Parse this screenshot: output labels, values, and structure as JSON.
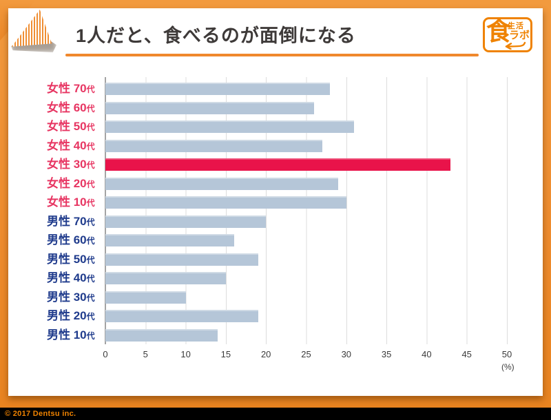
{
  "header": {
    "title": "1人だと、食べるのが面倒になる"
  },
  "logo": {
    "shoku": "食",
    "seikatsu": "生活",
    "labo": "ラボ",
    "name": "食生活ラボ",
    "color": "#ef8200"
  },
  "footer": {
    "copyright": "© 2017 Dentsu inc."
  },
  "chart_data": {
    "type": "bar",
    "orientation": "horizontal",
    "title": "1人だと、食べるのが面倒になる",
    "xlabel": "",
    "ylabel": "",
    "unit_label": "(%)",
    "xlim": [
      0,
      50
    ],
    "xticks": [
      0,
      5,
      10,
      15,
      20,
      25,
      30,
      35,
      40,
      45,
      50
    ],
    "grid": true,
    "legend": "none",
    "categories": [
      "女性 70代",
      "女性 60代",
      "女性 50代",
      "女性 40代",
      "女性 30代",
      "女性 20代",
      "女性 10代",
      "男性 70代",
      "男性 60代",
      "男性 50代",
      "男性 40代",
      "男性 30代",
      "男性 20代",
      "男性 10代"
    ],
    "values": [
      28,
      26,
      31,
      27,
      43,
      29,
      30,
      20,
      16,
      19,
      15,
      10,
      19,
      14
    ],
    "highlight_index": 4,
    "rows": [
      {
        "group": "female",
        "label": "女性 70",
        "suffix": "代",
        "value": 28,
        "highlight": false
      },
      {
        "group": "female",
        "label": "女性 60",
        "suffix": "代",
        "value": 26,
        "highlight": false
      },
      {
        "group": "female",
        "label": "女性 50",
        "suffix": "代",
        "value": 31,
        "highlight": false
      },
      {
        "group": "female",
        "label": "女性 40",
        "suffix": "代",
        "value": 27,
        "highlight": false
      },
      {
        "group": "female",
        "label": "女性 30",
        "suffix": "代",
        "value": 43,
        "highlight": true
      },
      {
        "group": "female",
        "label": "女性 20",
        "suffix": "代",
        "value": 29,
        "highlight": false
      },
      {
        "group": "female",
        "label": "女性 10",
        "suffix": "代",
        "value": 30,
        "highlight": false
      },
      {
        "group": "male",
        "label": "男性 70",
        "suffix": "代",
        "value": 20,
        "highlight": false
      },
      {
        "group": "male",
        "label": "男性 60",
        "suffix": "代",
        "value": 16,
        "highlight": false
      },
      {
        "group": "male",
        "label": "男性 50",
        "suffix": "代",
        "value": 19,
        "highlight": false
      },
      {
        "group": "male",
        "label": "男性 40",
        "suffix": "代",
        "value": 15,
        "highlight": false
      },
      {
        "group": "male",
        "label": "男性 30",
        "suffix": "代",
        "value": 10,
        "highlight": false
      },
      {
        "group": "male",
        "label": "男性 20",
        "suffix": "代",
        "value": 19,
        "highlight": false
      },
      {
        "group": "male",
        "label": "男性 10",
        "suffix": "代",
        "value": 14,
        "highlight": false
      }
    ],
    "colors": {
      "bar": "#b5c6d8",
      "highlight_bar": "#e9134a",
      "female_label": "#e73562",
      "male_label": "#1f3b8c",
      "gridline": "#dcdcdc",
      "axis_line": "#a3a3a3",
      "frame_orange": "#ef8e33"
    }
  }
}
